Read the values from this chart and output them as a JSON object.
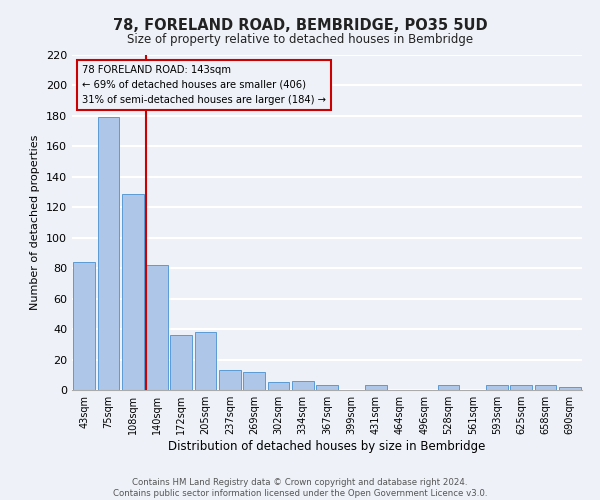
{
  "title": "78, FORELAND ROAD, BEMBRIDGE, PO35 5UD",
  "subtitle": "Size of property relative to detached houses in Bembridge",
  "xlabel": "Distribution of detached houses by size in Bembridge",
  "ylabel": "Number of detached properties",
  "categories": [
    "43sqm",
    "75sqm",
    "108sqm",
    "140sqm",
    "172sqm",
    "205sqm",
    "237sqm",
    "269sqm",
    "302sqm",
    "334sqm",
    "367sqm",
    "399sqm",
    "431sqm",
    "464sqm",
    "496sqm",
    "528sqm",
    "561sqm",
    "593sqm",
    "625sqm",
    "658sqm",
    "690sqm"
  ],
  "values": [
    84,
    179,
    129,
    82,
    36,
    38,
    13,
    12,
    5,
    6,
    3,
    0,
    3,
    0,
    0,
    3,
    0,
    3,
    3,
    3,
    2
  ],
  "bar_color": "#aec6e8",
  "bar_edge_color": "#5a9bd5",
  "vline_x_index": 3,
  "vline_color": "#cc0000",
  "annotation_line1": "78 FORELAND ROAD: 143sqm",
  "annotation_line2": "← 69% of detached houses are smaller (406)",
  "annotation_line3": "31% of semi-detached houses are larger (184) →",
  "annotation_box_color": "#cc0000",
  "ylim": [
    0,
    220
  ],
  "yticks": [
    0,
    20,
    40,
    60,
    80,
    100,
    120,
    140,
    160,
    180,
    200,
    220
  ],
  "footer": "Contains HM Land Registry data © Crown copyright and database right 2024.\nContains public sector information licensed under the Open Government Licence v3.0.",
  "bg_color": "#eef2f8",
  "grid_color": "#ffffff"
}
